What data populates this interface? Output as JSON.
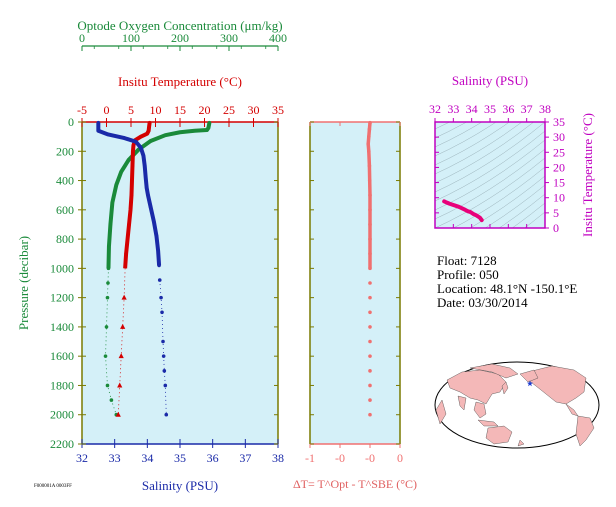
{
  "colors": {
    "panel_bg": "#d4f0f8",
    "oxygen": "#1a8a3a",
    "temperature": "#d40000",
    "salinity": "#1a2aa8",
    "ts_curve": "#e8007a",
    "magenta_axis": "#c000c0",
    "delta_t": "#f07070",
    "olive_axis": "#7a7a00",
    "land": "#f4b8b8",
    "ocean": "#ffffff"
  },
  "chart_data": [
    {
      "type": "line",
      "name": "profile",
      "y_axis": {
        "label": "Pressure (decibar)",
        "ticks": [
          0,
          200,
          400,
          600,
          800,
          1000,
          1200,
          1400,
          1600,
          1800,
          2000,
          2200
        ],
        "range": [
          0,
          2200
        ],
        "inverted": true
      },
      "x_axes": {
        "oxygen": {
          "title": "Optode Oxygen Concentration (μm/kg)",
          "ticks": [
            0,
            100,
            200,
            300,
            400
          ],
          "range": [
            0,
            400
          ]
        },
        "temperature": {
          "title": "Insitu Temperature (°C)",
          "ticks": [
            -5,
            0,
            5,
            10,
            15,
            20,
            25,
            30,
            35
          ],
          "range": [
            -5,
            35
          ]
        },
        "salinity": {
          "title": "Salinity (PSU)",
          "ticks": [
            32,
            33,
            34,
            35,
            36,
            37,
            38
          ],
          "range": [
            32,
            38
          ]
        }
      },
      "series": [
        {
          "key": "oxygen",
          "points": [
            [
              260,
              5
            ],
            [
              258,
              40
            ],
            [
              255,
              55
            ],
            [
              230,
              60
            ],
            [
              200,
              70
            ],
            [
              170,
              90
            ],
            [
              140,
              130
            ],
            [
              115,
              190
            ],
            [
              95,
              260
            ],
            [
              80,
              340
            ],
            [
              70,
              430
            ],
            [
              62,
              550
            ],
            [
              58,
              700
            ],
            [
              55,
              850
            ],
            [
              54,
              1000
            ],
            [
              53,
              1100
            ],
            [
              52,
              1200
            ],
            [
              50,
              1400
            ],
            [
              48,
              1600
            ],
            [
              52,
              1800
            ],
            [
              60,
              1900
            ],
            [
              70,
              2000
            ]
          ]
        },
        {
          "key": "temperature",
          "points": [
            [
              8.8,
              5
            ],
            [
              8.7,
              30
            ],
            [
              8.6,
              60
            ],
            [
              8.3,
              80
            ],
            [
              7.0,
              100
            ],
            [
              5.8,
              125
            ],
            [
              5.5,
              160
            ],
            [
              5.4,
              200
            ],
            [
              5.3,
              300
            ],
            [
              5.2,
              400
            ],
            [
              5.1,
              500
            ],
            [
              4.9,
              600
            ],
            [
              4.6,
              700
            ],
            [
              4.3,
              800
            ],
            [
              4.0,
              900
            ],
            [
              3.8,
              1000
            ],
            [
              3.6,
              1200
            ],
            [
              3.3,
              1400
            ],
            [
              3.0,
              1600
            ],
            [
              2.7,
              1800
            ],
            [
              2.4,
              2000
            ]
          ]
        },
        {
          "key": "salinity",
          "points": [
            [
              32.5,
              5
            ],
            [
              32.5,
              30
            ],
            [
              32.5,
              60
            ],
            [
              32.8,
              85
            ],
            [
              33.3,
              110
            ],
            [
              33.65,
              135
            ],
            [
              33.8,
              175
            ],
            [
              33.88,
              230
            ],
            [
              33.92,
              300
            ],
            [
              33.95,
              380
            ],
            [
              33.98,
              450
            ],
            [
              34.02,
              500
            ],
            [
              34.1,
              580
            ],
            [
              34.2,
              680
            ],
            [
              34.28,
              780
            ],
            [
              34.33,
              880
            ],
            [
              34.36,
              980
            ],
            [
              34.38,
              1080
            ],
            [
              34.42,
              1200
            ],
            [
              34.45,
              1300
            ],
            [
              34.48,
              1500
            ],
            [
              34.5,
              1600
            ],
            [
              34.52,
              1700
            ],
            [
              34.55,
              1800
            ],
            [
              34.58,
              2000
            ]
          ]
        }
      ]
    },
    {
      "type": "scatter",
      "name": "delta_t",
      "x_axis": {
        "title": "ΔT= T^Opt - T^SBE (°C)",
        "ticks": [
          "-1",
          "-0",
          "-0",
          "0"
        ],
        "range": [
          -1,
          0.1
        ]
      },
      "y_range": [
        0,
        2200
      ],
      "points": [
        [
          0.0,
          5
        ],
        [
          -0.01,
          50
        ],
        [
          -0.02,
          100
        ],
        [
          -0.03,
          150
        ],
        [
          -0.02,
          200
        ],
        [
          -0.01,
          300
        ],
        [
          -0.005,
          400
        ],
        [
          0,
          500
        ],
        [
          0,
          600
        ],
        [
          0,
          700
        ],
        [
          0,
          800
        ],
        [
          0,
          900
        ],
        [
          0,
          1000
        ],
        [
          0,
          1100
        ],
        [
          0,
          1200
        ],
        [
          0,
          1300
        ],
        [
          0,
          1400
        ],
        [
          0,
          1500
        ],
        [
          0,
          1600
        ],
        [
          0,
          1700
        ],
        [
          0,
          1800
        ],
        [
          0,
          1900
        ],
        [
          0,
          2000
        ]
      ]
    },
    {
      "type": "line",
      "name": "ts_diagram",
      "x_axis": {
        "title": "Salinity (PSU)",
        "ticks": [
          32,
          33,
          34,
          35,
          36,
          37,
          38
        ],
        "range": [
          32,
          38
        ]
      },
      "y_axis": {
        "label": "Insitu Temperature (°C)",
        "ticks": [
          0,
          5,
          10,
          15,
          20,
          25,
          30,
          35
        ],
        "range": [
          0,
          35
        ]
      },
      "points": [
        [
          32.5,
          8.8
        ],
        [
          32.6,
          8.5
        ],
        [
          32.8,
          8.0
        ],
        [
          33.3,
          7.0
        ],
        [
          33.65,
          6.0
        ],
        [
          33.8,
          5.5
        ],
        [
          33.92,
          5.3
        ],
        [
          34.0,
          5.0
        ],
        [
          34.1,
          4.6
        ],
        [
          34.25,
          4.2
        ],
        [
          34.35,
          3.8
        ],
        [
          34.45,
          3.4
        ],
        [
          34.55,
          2.6
        ]
      ]
    }
  ],
  "float_info": {
    "float": "Float:  7128",
    "profile": "Profile:  050",
    "location": "Location:  48.1°N  -150.1°E",
    "date": "Date:  03/30/2014"
  },
  "map": {
    "marker_icon": "blue-star-icon",
    "marker_lat": 48.1,
    "marker_lon": -150.1
  },
  "footer_code": "F000001A 0003FF"
}
